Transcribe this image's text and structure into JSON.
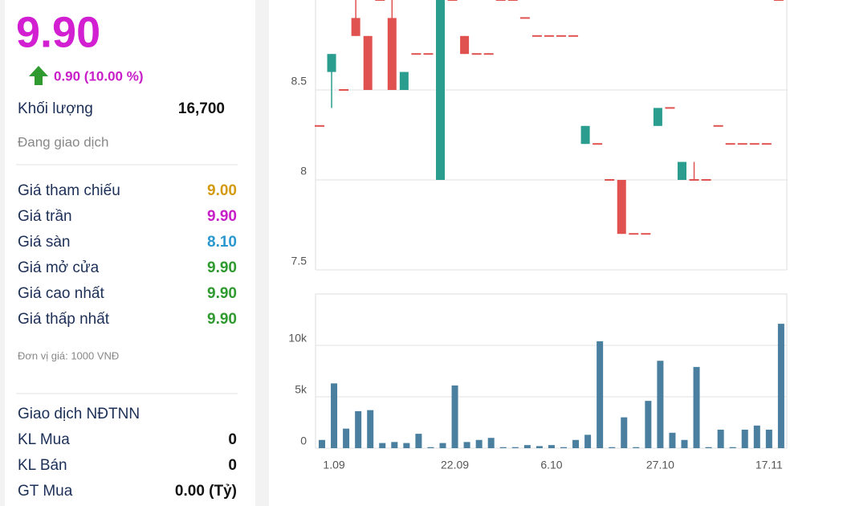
{
  "panel": {
    "price": "9.90",
    "change": "0.90 (10.00 %)",
    "volume_label": "Khối lượng",
    "volume": "16,700",
    "status": "Đang giao dịch",
    "prices": [
      {
        "label": "Giá tham chiếu",
        "value": "9.00",
        "color": "#d49b12"
      },
      {
        "label": "Giá trần",
        "value": "9.90",
        "color": "#c81ec8"
      },
      {
        "label": "Giá sàn",
        "value": "8.10",
        "color": "#2a97cf"
      },
      {
        "label": "Giá mở cửa",
        "value": "9.90",
        "color": "#2f9a2f"
      },
      {
        "label": "Giá cao nhất",
        "value": "9.90",
        "color": "#2f9a2f"
      },
      {
        "label": "Giá thấp nhất",
        "value": "9.90",
        "color": "#2f9a2f"
      }
    ],
    "unit_note": "Đơn vị giá: 1000 VNĐ",
    "foreign": {
      "title": "Giao dịch NĐTNN",
      "rows": [
        {
          "label": "KL Mua",
          "value": "0"
        },
        {
          "label": "KL Bán",
          "value": "0"
        },
        {
          "label": "GT Mua",
          "value": "0.00 (Tỷ)"
        }
      ]
    }
  },
  "chart_data": {
    "type": "candlestick",
    "up_color": "#2a9d8f",
    "down_color": "#e0524f",
    "volume_color": "#4a7fa0",
    "grid": true,
    "categories": [
      null,
      "1.09",
      null,
      null,
      null,
      null,
      null,
      null,
      null,
      null,
      null,
      "22.09",
      null,
      null,
      null,
      null,
      null,
      null,
      null,
      "6.10",
      null,
      null,
      null,
      null,
      null,
      null,
      null,
      null,
      "27.10",
      null,
      null,
      null,
      null,
      null,
      null,
      null,
      null,
      "17.11",
      null
    ],
    "open": [
      8.3,
      8.6,
      8.5,
      8.9,
      8.8,
      9.0,
      8.9,
      8.5,
      8.7,
      8.7,
      8.0,
      9.0,
      8.8,
      8.7,
      8.7,
      9.0,
      9.0,
      8.9,
      8.8,
      8.8,
      8.8,
      8.8,
      8.2,
      8.2,
      8.0,
      8.0,
      7.7,
      7.7,
      8.3,
      8.4,
      8.0,
      8.0,
      8.0,
      8.3,
      8.2,
      8.2,
      8.2,
      8.2,
      9.0
    ],
    "high": [
      8.3,
      8.7,
      8.5,
      9.0,
      8.8,
      9.0,
      9.0,
      8.6,
      8.7,
      8.7,
      9.0,
      9.0,
      8.8,
      8.7,
      8.7,
      9.0,
      9.0,
      8.9,
      8.8,
      8.8,
      8.8,
      8.8,
      8.3,
      8.2,
      8.0,
      8.0,
      7.7,
      7.7,
      8.4,
      8.4,
      8.1,
      8.1,
      8.0,
      8.3,
      8.2,
      8.2,
      8.2,
      8.2,
      9.0
    ],
    "low": [
      8.3,
      8.4,
      8.5,
      8.8,
      8.5,
      9.0,
      8.5,
      8.5,
      8.7,
      8.7,
      8.0,
      9.0,
      8.7,
      8.7,
      8.7,
      9.0,
      9.0,
      8.9,
      8.8,
      8.8,
      8.8,
      8.8,
      8.2,
      8.2,
      8.0,
      7.7,
      7.7,
      7.7,
      8.3,
      8.4,
      8.0,
      8.0,
      8.0,
      8.3,
      8.2,
      8.2,
      8.2,
      8.2,
      9.0
    ],
    "close": [
      8.3,
      8.7,
      8.5,
      8.8,
      8.5,
      9.0,
      8.5,
      8.6,
      8.7,
      8.7,
      9.0,
      9.0,
      8.7,
      8.7,
      8.7,
      9.0,
      9.0,
      8.9,
      8.8,
      8.8,
      8.8,
      8.8,
      8.3,
      8.2,
      8.0,
      7.7,
      7.7,
      7.7,
      8.4,
      8.4,
      8.1,
      8.0,
      8.0,
      8.3,
      8.2,
      8.2,
      8.2,
      8.2,
      9.0
    ],
    "volume": [
      800,
      6300,
      1900,
      3600,
      3700,
      500,
      600,
      500,
      1400,
      100,
      500,
      6100,
      600,
      800,
      1000,
      100,
      100,
      300,
      200,
      300,
      100,
      800,
      1300,
      10400,
      100,
      3000,
      100,
      4600,
      8500,
      1500,
      800,
      7900,
      100,
      1800,
      100,
      1800,
      2200,
      1800,
      12100
    ],
    "ylim": [
      7.5,
      9.0
    ],
    "yticks": [
      7.5,
      8,
      8.5
    ],
    "y2lim": [
      0,
      15000
    ],
    "y2ticks": [
      0,
      {
        "value": 5000,
        "label": "5k"
      },
      {
        "value": 10000,
        "label": "10k"
      }
    ]
  }
}
